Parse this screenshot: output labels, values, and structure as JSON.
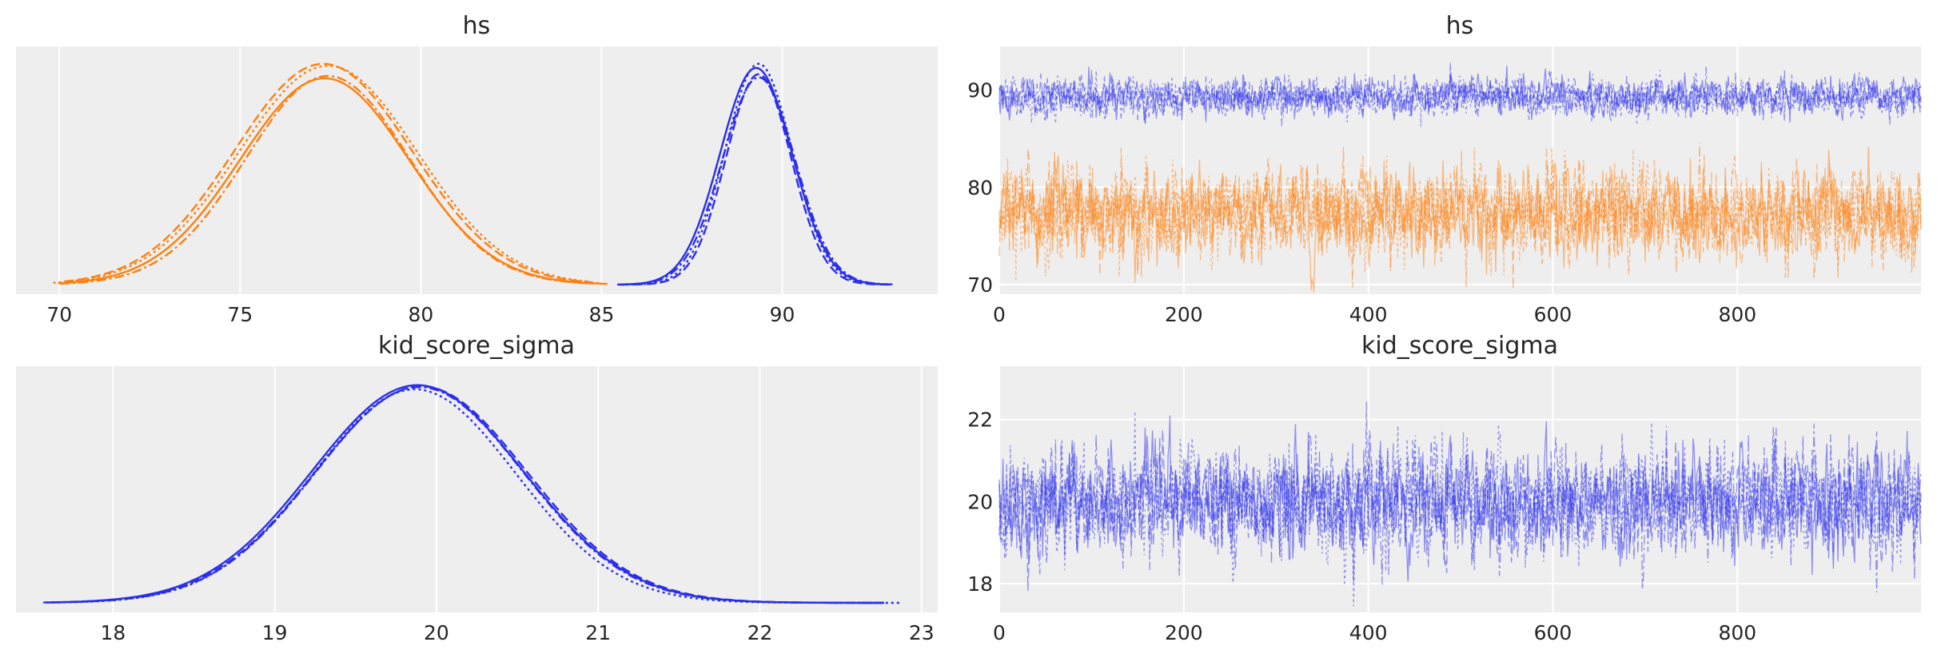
{
  "chart_data": [
    {
      "type": "line",
      "title": "hs",
      "xlabel": "",
      "ylabel": "",
      "xlim": [
        68.8,
        94.3
      ],
      "x_ticks": [
        70,
        75,
        80,
        85,
        90
      ],
      "grid": true,
      "series": [
        {
          "color": "#ff7f0e",
          "peak_x": 77.4,
          "sigma": 2.35,
          "x_range": [
            70,
            85
          ]
        },
        {
          "color": "#2a2eec",
          "peak_x": 89.3,
          "sigma": 0.95,
          "x_range": [
            85.5,
            93
          ]
        }
      ],
      "chains": 4
    },
    {
      "type": "line",
      "title": "hs",
      "xlabel": "",
      "ylabel": "",
      "xlim": [
        0,
        999
      ],
      "ylim": [
        69,
        94.5
      ],
      "x_ticks": [
        0,
        200,
        400,
        600,
        800
      ],
      "y_ticks": [
        70,
        80,
        90
      ],
      "grid": true,
      "series": [
        {
          "color": "#2a2eec",
          "mean": 89.3,
          "sd": 0.95,
          "draws": 1000
        },
        {
          "color": "#ff7f0e",
          "mean": 77.4,
          "sd": 2.35,
          "draws": 1000
        }
      ],
      "chains": 4
    },
    {
      "type": "line",
      "title": "kid_score_sigma",
      "xlabel": "",
      "ylabel": "",
      "xlim": [
        17.4,
        23.1
      ],
      "x_ticks": [
        18,
        19,
        20,
        21,
        22,
        23
      ],
      "grid": true,
      "series": [
        {
          "color": "#2a2eec",
          "peak_x": 19.9,
          "sigma": 0.65,
          "x_range": [
            17.6,
            22.8
          ]
        }
      ],
      "chains": 4
    },
    {
      "type": "line",
      "title": "kid_score_sigma",
      "xlabel": "",
      "ylabel": "",
      "xlim": [
        0,
        999
      ],
      "ylim": [
        17.3,
        23.3
      ],
      "x_ticks": [
        0,
        200,
        400,
        600,
        800
      ],
      "y_ticks": [
        18,
        20,
        22
      ],
      "grid": true,
      "series": [
        {
          "color": "#2a2eec",
          "mean": 19.95,
          "sd": 0.65,
          "draws": 1000
        }
      ],
      "chains": 4
    }
  ]
}
